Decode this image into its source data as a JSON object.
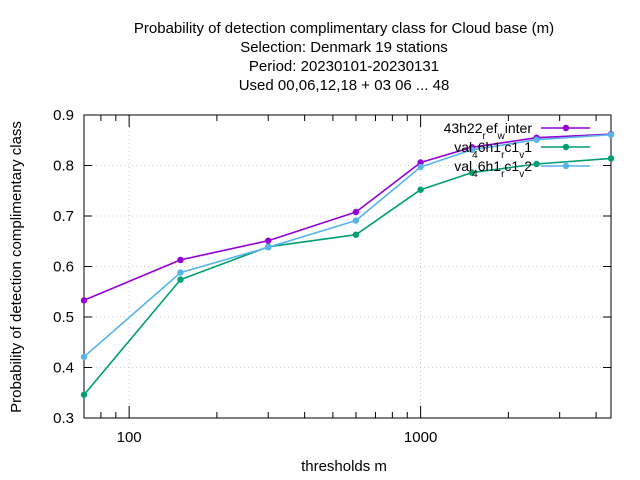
{
  "chart_data": {
    "type": "line",
    "title_lines": [
      "Probability of detection complimentary class  for Cloud base (m)",
      "Selection: Denmark     19 stations",
      "Period: 20230101-20230131",
      "Used  00,06,12,18  + 03 06 ... 48"
    ],
    "xlabel": "thresholds m",
    "ylabel": "Probability of detection complimentary class",
    "x_scale": "log",
    "xlim": [
      70,
      4500
    ],
    "ylim": [
      0.3,
      0.9
    ],
    "x_ticks": [
      100,
      1000
    ],
    "x_tick_labels": [
      "100",
      "1000"
    ],
    "y_ticks": [
      0.3,
      0.4,
      0.5,
      0.6,
      0.7,
      0.8,
      0.9
    ],
    "y_tick_labels": [
      "0.3",
      "0.4",
      "0.5",
      "0.6",
      "0.7",
      "0.8",
      "0.9"
    ],
    "grid": true,
    "legend_position": "top-right",
    "series": [
      {
        "name": "43h22_ref_winter",
        "name_parts": [
          [
            "43h22",
            "n"
          ],
          [
            "r",
            "s"
          ],
          [
            "ef",
            "n"
          ],
          [
            "w",
            "s"
          ],
          [
            "inter",
            "n"
          ]
        ],
        "color": "#9400d3",
        "x": [
          70,
          150,
          300,
          600,
          1000,
          1500,
          2500,
          4500
        ],
        "y": [
          0.533,
          0.613,
          0.651,
          0.708,
          0.806,
          0.836,
          0.855,
          0.862
        ]
      },
      {
        "name": "val_46h1_rc1_v1",
        "name_parts": [
          [
            "val",
            "n"
          ],
          [
            "4",
            "s"
          ],
          [
            "6h1",
            "n"
          ],
          [
            "r",
            "s"
          ],
          [
            "c1",
            "n"
          ],
          [
            "v",
            "s"
          ],
          [
            "1",
            "n"
          ]
        ],
        "color": "#009e73",
        "x": [
          70,
          150,
          300,
          600,
          1000,
          1500,
          2500,
          4500
        ],
        "y": [
          0.346,
          0.574,
          0.639,
          0.663,
          0.752,
          0.786,
          0.803,
          0.814
        ]
      },
      {
        "name": "val_46h1_rc1_v2",
        "name_parts": [
          [
            "val",
            "n"
          ],
          [
            "4",
            "s"
          ],
          [
            "6h1",
            "n"
          ],
          [
            "r",
            "s"
          ],
          [
            "c1",
            "n"
          ],
          [
            "v",
            "s"
          ],
          [
            "2",
            "n"
          ]
        ],
        "color": "#56b4e9",
        "x": [
          70,
          150,
          300,
          600,
          1000,
          1500,
          2500,
          4500
        ],
        "y": [
          0.421,
          0.588,
          0.638,
          0.691,
          0.797,
          0.831,
          0.851,
          0.861
        ]
      }
    ]
  }
}
